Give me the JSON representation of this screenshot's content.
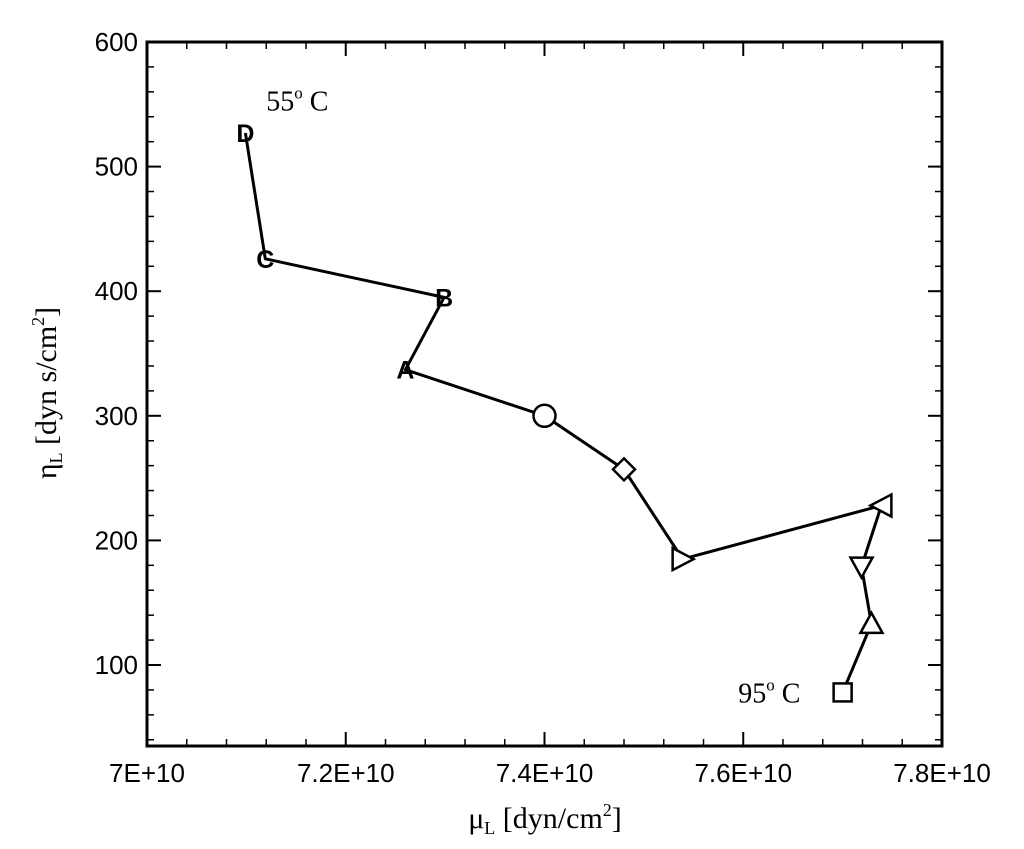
{
  "chart_data": {
    "type": "line",
    "title": "",
    "xlabel": {
      "main": "μ",
      "sub": "L",
      "unit_pre": " [dyn/cm",
      "unit_sup": "2",
      "unit_post": "]"
    },
    "ylabel": {
      "main": "η",
      "sub": "L",
      "unit_pre": " [dyn s/cm",
      "unit_sup": "2",
      "unit_post": "]"
    },
    "xlim": [
      70000000000,
      78000000000
    ],
    "ylim": [
      35,
      600
    ],
    "x_ticks": [
      70000000000,
      72000000000,
      74000000000,
      76000000000,
      78000000000
    ],
    "x_tick_labels": [
      "7E+10",
      "7.2E+10",
      "7.4E+10",
      "7.6E+10",
      "7.8E+10"
    ],
    "y_ticks": [
      100,
      200,
      300,
      400,
      500,
      600
    ],
    "y_tick_labels": [
      "100",
      "200",
      "300",
      "400",
      "500",
      "600"
    ],
    "grid": false,
    "series": [
      {
        "points": [
          {
            "x": 70990000000,
            "y": 527,
            "marker": "letter",
            "label": "D"
          },
          {
            "x": 71190000000,
            "y": 426,
            "marker": "letter",
            "label": "C"
          },
          {
            "x": 72990000000,
            "y": 395,
            "marker": "letter",
            "label": "B"
          },
          {
            "x": 72600000000,
            "y": 337,
            "marker": "letter",
            "label": "A"
          },
          {
            "x": 74000000000,
            "y": 300,
            "marker": "circle"
          },
          {
            "x": 74800000000,
            "y": 257,
            "marker": "diamond"
          },
          {
            "x": 75390000000,
            "y": 185,
            "marker": "triangle-right"
          },
          {
            "x": 77390000000,
            "y": 228,
            "marker": "triangle-left"
          },
          {
            "x": 77190000000,
            "y": 179,
            "marker": "triangle-down"
          },
          {
            "x": 77290000000,
            "y": 133,
            "marker": "triangle-up"
          },
          {
            "x": 77000000000,
            "y": 78,
            "marker": "square"
          }
        ]
      }
    ],
    "annotations": [
      {
        "text": "55",
        "sup": "o",
        "suffix": " C",
        "x": 71200000000,
        "y": 545
      },
      {
        "text": "95",
        "sup": "o",
        "suffix": " C",
        "x": 75950000000,
        "y": 70
      }
    ]
  }
}
